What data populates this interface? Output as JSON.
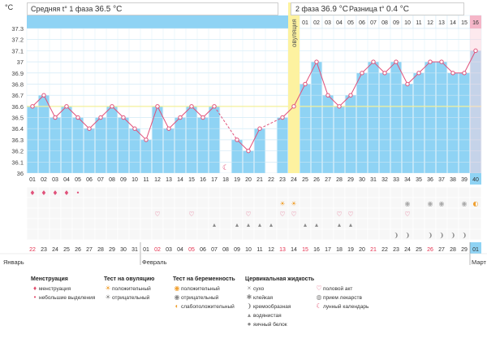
{
  "header": {
    "unit_label": "°C",
    "phase1_label": "Средняя t° 1 фаза",
    "phase1_value": "36.5 °C",
    "phase2_label": "2 фаза",
    "phase2_value": "36.9 °C",
    "diff_label": "Разница t°",
    "diff_value": "0.4 °C",
    "ovulation_label": "овуляция"
  },
  "chart_data": {
    "type": "line",
    "title": "",
    "xlabel": "",
    "ylabel": "°C",
    "ylim": [
      36.0,
      37.3
    ],
    "y_ticks": [
      "36",
      "36.1",
      "36.2",
      "36.3",
      "36.4",
      "36.5",
      "36.6",
      "36.7",
      "36.8",
      "36.9",
      "37",
      "37.1",
      "37.2",
      "37.3"
    ],
    "coverline": 36.6,
    "ovulation_day": 24,
    "cycle_days": [
      "01",
      "02",
      "03",
      "04",
      "05",
      "06",
      "07",
      "08",
      "09",
      "10",
      "11",
      "12",
      "13",
      "14",
      "15",
      "16",
      "17",
      "18",
      "19",
      "20",
      "21",
      "22",
      "23",
      "24",
      "25",
      "26",
      "27",
      "28",
      "29",
      "30",
      "31",
      "32",
      "33",
      "34",
      "35",
      "36",
      "37",
      "38",
      "39",
      "40"
    ],
    "series": [
      {
        "values": [
          36.6,
          36.7,
          36.5,
          36.6,
          36.5,
          36.4,
          36.5,
          36.6,
          36.5,
          36.4,
          36.3,
          36.6,
          36.4,
          36.5,
          36.6,
          36.5,
          36.6,
          null,
          36.3,
          36.2,
          36.4,
          null,
          36.5,
          36.6,
          36.8,
          37.0,
          36.7,
          36.6,
          36.7,
          36.9,
          37.0,
          36.9,
          37.0,
          36.8,
          36.9,
          37.0,
          37.0,
          36.9,
          36.9,
          37.1
        ]
      }
    ],
    "header_row": [
      "01",
      "02",
      "03",
      "04",
      "05",
      "06",
      "07",
      "08",
      "09",
      "10",
      "11",
      "12",
      "13",
      "14",
      "15",
      "16"
    ],
    "dates": [
      "22",
      "23",
      "24",
      "25",
      "26",
      "27",
      "28",
      "29",
      "30",
      "31",
      "01",
      "02",
      "03",
      "04",
      "05",
      "06",
      "07",
      "08",
      "09",
      "10",
      "11",
      "12",
      "13",
      "14",
      "15",
      "16",
      "17",
      "18",
      "19",
      "20",
      "21",
      "22",
      "23",
      "24",
      "25",
      "26",
      "27",
      "28",
      "29",
      "01"
    ],
    "red_date_indices": [
      0,
      11,
      14,
      22,
      24,
      30,
      35
    ],
    "months": [
      {
        "label": "Январь",
        "index": 0
      },
      {
        "label": "Февраль",
        "index": 10
      },
      {
        "label": "Март",
        "index": 39
      }
    ],
    "events": [
      {
        "row": 0,
        "day": 1,
        "icon": "menstruation-icon"
      },
      {
        "row": 0,
        "day": 2,
        "icon": "menstruation-icon"
      },
      {
        "row": 0,
        "day": 3,
        "icon": "menstruation-icon"
      },
      {
        "row": 0,
        "day": 4,
        "icon": "menstruation-icon"
      },
      {
        "row": 0,
        "day": 5,
        "icon": "spotting-icon"
      },
      {
        "row": 1,
        "day": 23,
        "icon": "ovulation-positive-icon"
      },
      {
        "row": 1,
        "day": 24,
        "icon": "ovulation-positive-icon"
      },
      {
        "row": 1,
        "day": 34,
        "icon": "pregnancy-negative-icon"
      },
      {
        "row": 1,
        "day": 36,
        "icon": "pregnancy-negative-icon"
      },
      {
        "row": 1,
        "day": 37,
        "icon": "pregnancy-negative-icon"
      },
      {
        "row": 1,
        "day": 39,
        "icon": "pregnancy-negative-icon"
      },
      {
        "row": 1,
        "day": 40,
        "icon": "pregnancy-weak-icon"
      },
      {
        "row": 2,
        "day": 12,
        "icon": "intercourse-icon"
      },
      {
        "row": 2,
        "day": 15,
        "icon": "intercourse-icon"
      },
      {
        "row": 2,
        "day": 20,
        "icon": "intercourse-icon"
      },
      {
        "row": 2,
        "day": 23,
        "icon": "intercourse-icon"
      },
      {
        "row": 2,
        "day": 24,
        "icon": "intercourse-icon"
      },
      {
        "row": 2,
        "day": 28,
        "icon": "intercourse-icon"
      },
      {
        "row": 2,
        "day": 29,
        "icon": "intercourse-icon"
      },
      {
        "row": 2,
        "day": 34,
        "icon": "intercourse-icon"
      },
      {
        "row": 3,
        "day": 17,
        "icon": "egg-white-icon"
      },
      {
        "row": 3,
        "day": 19,
        "icon": "egg-white-icon"
      },
      {
        "row": 3,
        "day": 20,
        "icon": "egg-white-icon"
      },
      {
        "row": 3,
        "day": 21,
        "icon": "egg-white-icon"
      },
      {
        "row": 3,
        "day": 22,
        "icon": "egg-white-icon"
      },
      {
        "row": 3,
        "day": 25,
        "icon": "egg-white-icon"
      },
      {
        "row": 3,
        "day": 26,
        "icon": "egg-white-icon"
      },
      {
        "row": 3,
        "day": 28,
        "icon": "egg-white-icon"
      },
      {
        "row": 3,
        "day": 29,
        "icon": "egg-white-icon"
      },
      {
        "row": 4,
        "day": 33,
        "icon": "creamy-icon"
      },
      {
        "row": 4,
        "day": 34,
        "icon": "creamy-icon"
      },
      {
        "row": 4,
        "day": 36,
        "icon": "creamy-icon"
      },
      {
        "row": 4,
        "day": 37,
        "icon": "creamy-icon"
      },
      {
        "row": 4,
        "day": 38,
        "icon": "creamy-icon"
      },
      {
        "row": 4,
        "day": 39,
        "icon": "creamy-icon"
      }
    ],
    "moon_day": 18
  },
  "legend": {
    "sections": [
      {
        "heading": "Менструация",
        "items": [
          {
            "label": "менструация",
            "icon": "menstruation-icon"
          },
          {
            "label": "небольшие выделения",
            "icon": "spotting-icon"
          }
        ]
      },
      {
        "heading": "Тест на овуляцию",
        "items": [
          {
            "label": "положительный",
            "icon": "ovulation-positive-icon"
          },
          {
            "label": "отрицательный",
            "icon": "ovulation-negative-icon"
          }
        ]
      },
      {
        "heading": "Тест на беременность",
        "items": [
          {
            "label": "положительный",
            "icon": "pregnancy-positive-icon"
          },
          {
            "label": "отрицательный",
            "icon": "pregnancy-negative-icon"
          },
          {
            "label": "слабоположительный",
            "icon": "pregnancy-weak-icon"
          }
        ]
      },
      {
        "heading": "Цервикальная жидкость",
        "items": [
          {
            "label": "сухо",
            "icon": "dry-icon"
          },
          {
            "label": "клейкая",
            "icon": "sticky-icon"
          },
          {
            "label": "кремообразная",
            "icon": "creamy-icon"
          },
          {
            "label": "водянистая",
            "icon": "watery-icon"
          },
          {
            "label": "яичный белок",
            "icon": "egg-white-icon"
          }
        ]
      },
      {
        "heading": "",
        "items": [
          {
            "label": "половой акт",
            "icon": "intercourse-icon"
          },
          {
            "label": "прием лекарств",
            "icon": "medication-icon"
          },
          {
            "label": "лунный календарь",
            "icon": "moon-icon"
          }
        ]
      }
    ]
  },
  "colors": {
    "phase_blue": "#8fd3f4",
    "line_pink": "#e0517a",
    "coverline": "#f3f09a",
    "ovulation_yellow": "#fdf2a0",
    "red_text": "#e4314f"
  }
}
